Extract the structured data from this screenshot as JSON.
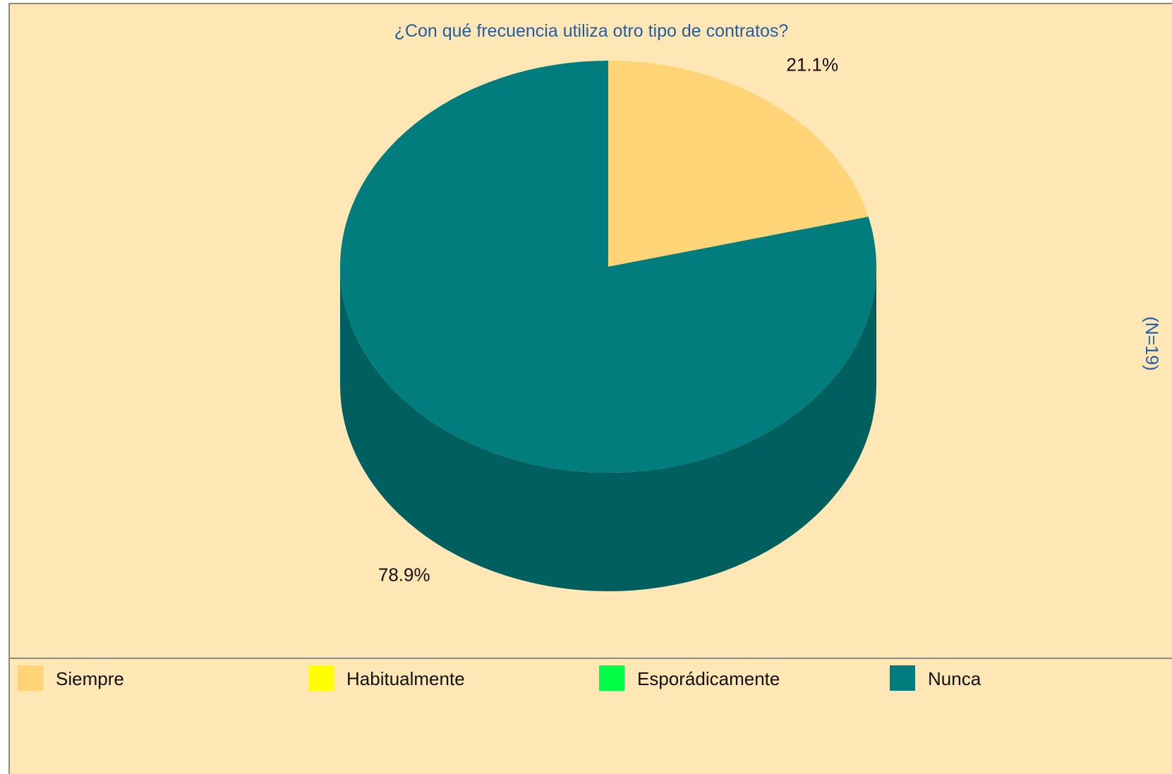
{
  "chart_data": {
    "type": "pie",
    "title": "¿Con qué frecuencia utiliza otro tipo de contratos?",
    "n_label": "(N=19)",
    "slices": [
      {
        "label": "Siempre",
        "value": 21.1,
        "value_label": "21.1%",
        "color": "#ffd476"
      },
      {
        "label": "Habitualmente",
        "value": 0,
        "value_label": "",
        "color": "#ffff00"
      },
      {
        "label": "Esporádicamente",
        "value": 0,
        "value_label": "",
        "color": "#00ff44"
      },
      {
        "label": "Nunca",
        "value": 78.9,
        "value_label": "78.9%",
        "color": "#017d7e"
      }
    ],
    "legend_position": "bottom",
    "style": "3d-pie"
  },
  "colors": {
    "background": "#ffe6b5",
    "title_text": "#1f5fa8",
    "nunca_side": "#00605f"
  }
}
